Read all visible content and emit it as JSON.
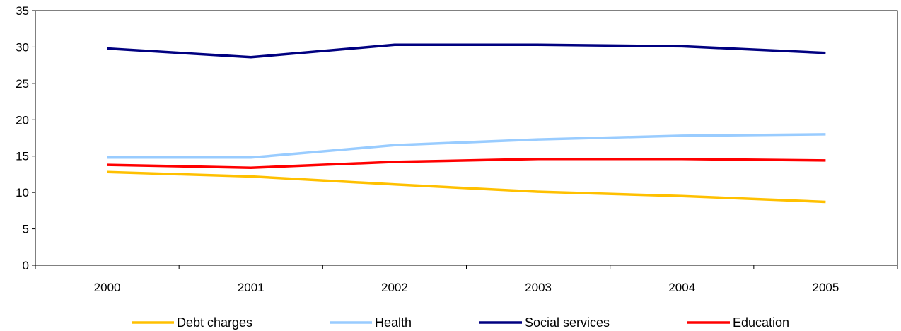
{
  "chart_data": {
    "type": "line",
    "title": "",
    "xlabel": "",
    "ylabel": "",
    "x": [
      "2000",
      "2001",
      "2002",
      "2003",
      "2004",
      "2005"
    ],
    "ylim": [
      0,
      35
    ],
    "yticks": [
      "0",
      "5",
      "10",
      "15",
      "20",
      "25",
      "30",
      "35"
    ],
    "grid": false,
    "legend_position": "bottom",
    "series": [
      {
        "name": "Debt charges",
        "color": "#FFC000",
        "values": [
          12.8,
          12.2,
          11.1,
          10.1,
          9.5,
          8.7
        ]
      },
      {
        "name": "Health",
        "color": "#99CCFF",
        "values": [
          14.8,
          14.8,
          16.5,
          17.3,
          17.8,
          18.0
        ]
      },
      {
        "name": "Social services",
        "color": "#000080",
        "values": [
          29.8,
          28.6,
          30.3,
          30.3,
          30.1,
          29.2
        ]
      },
      {
        "name": "Education",
        "color": "#FF0000",
        "values": [
          13.8,
          13.4,
          14.2,
          14.6,
          14.6,
          14.4
        ]
      }
    ]
  }
}
